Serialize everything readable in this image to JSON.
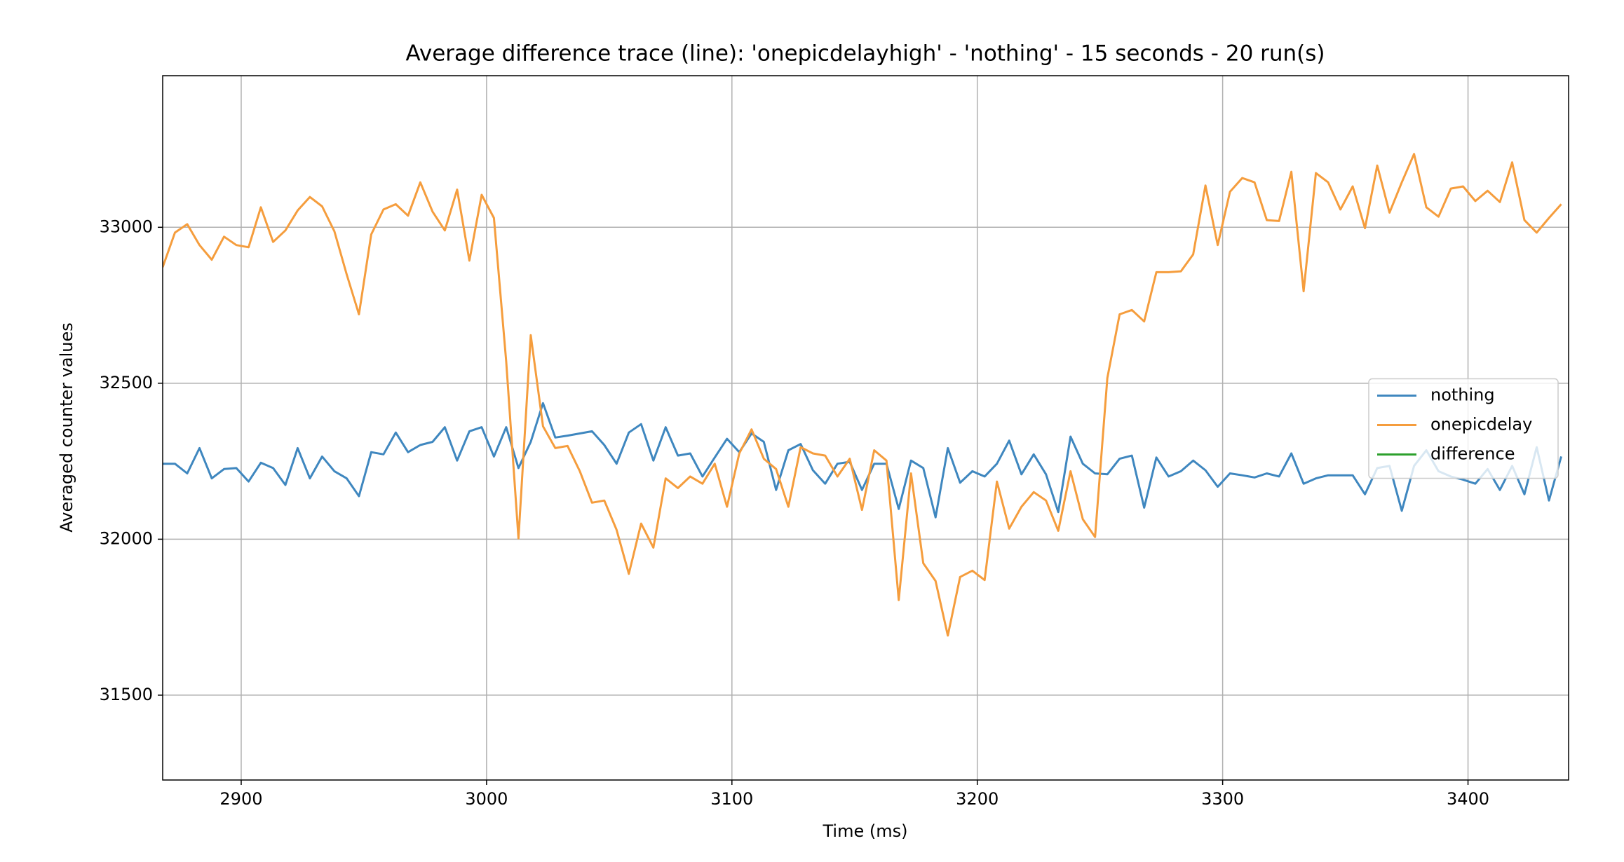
{
  "chart_data": {
    "type": "line",
    "title": "Average difference trace (line): 'onepicdelayhigh' - 'nothing' - 15 seconds - 20 run(s)",
    "x_label": "Time (ms)",
    "y_label": "Averaged counter values",
    "x": [
      2868,
      2873,
      2878,
      2883,
      2888,
      2893,
      2898,
      2903,
      2908,
      2913,
      2918,
      2923,
      2928,
      2933,
      2938,
      2943,
      2948,
      2953,
      2958,
      2963,
      2968,
      2973,
      2978,
      2983,
      2988,
      2993,
      2998,
      3003,
      3008,
      3013,
      3018,
      3023,
      3028,
      3033,
      3038,
      3043,
      3048,
      3053,
      3058,
      3063,
      3068,
      3073,
      3078,
      3083,
      3088,
      3093,
      3098,
      3103,
      3108,
      3113,
      3118,
      3123,
      3128,
      3133,
      3138,
      3143,
      3148,
      3153,
      3158,
      3163,
      3168,
      3173,
      3178,
      3183,
      3188,
      3193,
      3198,
      3203,
      3208,
      3213,
      3218,
      3223,
      3228,
      3233,
      3238,
      3243,
      3248,
      3253,
      3258,
      3263,
      3268,
      3273,
      3278,
      3283,
      3288,
      3293,
      3298,
      3303,
      3308,
      3313,
      3318,
      3323,
      3328,
      3333,
      3338,
      3343,
      3348,
      3353,
      3358,
      3363,
      3368,
      3373,
      3378,
      3383,
      3388,
      3393,
      3398,
      3403,
      3408,
      3413,
      3418,
      3423,
      3428,
      3433,
      3438
    ],
    "series": [
      {
        "name": "nothing",
        "color": "#3f87bf",
        "values": [
          32242,
          32242,
          32211,
          32292,
          32195,
          32225,
          32228,
          32185,
          32245,
          32228,
          32174,
          32292,
          32195,
          32265,
          32218,
          32195,
          32138,
          32279,
          32272,
          32342,
          32279,
          32302,
          32312,
          32359,
          32252,
          32346,
          32359,
          32265,
          32359,
          32228,
          32312,
          32436,
          32326,
          32332,
          32339,
          32346,
          32302,
          32242,
          32342,
          32369,
          32252,
          32359,
          32268,
          32275,
          32201,
          32262,
          32322,
          32279,
          32339,
          32312,
          32158,
          32285,
          32305,
          32221,
          32178,
          32242,
          32248,
          32158,
          32242,
          32242,
          32097,
          32252,
          32228,
          32070,
          32292,
          32181,
          32218,
          32201,
          32242,
          32316,
          32208,
          32272,
          32208,
          32087,
          32329,
          32242,
          32211,
          32208,
          32258,
          32268,
          32101,
          32262,
          32201,
          32218,
          32252,
          32221,
          32168,
          32211,
          32205,
          32198,
          32211,
          32201,
          32275,
          32178,
          32195,
          32205,
          32205,
          32205,
          32144,
          32228,
          32235,
          32091,
          32235,
          32285,
          32218,
          32201,
          32191,
          32178,
          32225,
          32158,
          32235,
          32144,
          32295,
          32124,
          32265
        ]
      },
      {
        "name": "onepicdelay",
        "color": "#f59d3d",
        "values": [
          32872,
          32983,
          33010,
          32943,
          32896,
          32970,
          32943,
          32936,
          33064,
          32953,
          32990,
          33054,
          33097,
          33067,
          32987,
          32849,
          32721,
          32977,
          33057,
          33074,
          33037,
          33144,
          33050,
          32990,
          33121,
          32893,
          33104,
          33030,
          32570,
          32003,
          32654,
          32362,
          32292,
          32299,
          32218,
          32117,
          32124,
          32030,
          31889,
          32050,
          31973,
          32195,
          32164,
          32201,
          32178,
          32242,
          32104,
          32275,
          32352,
          32258,
          32225,
          32104,
          32295,
          32275,
          32268,
          32201,
          32258,
          32094,
          32285,
          32252,
          31805,
          32211,
          31923,
          31866,
          31691,
          31879,
          31899,
          31869,
          32185,
          32034,
          32104,
          32151,
          32124,
          32027,
          32218,
          32064,
          32007,
          32517,
          32721,
          32735,
          32698,
          32856,
          32856,
          32859,
          32913,
          33134,
          32943,
          33114,
          33158,
          33144,
          33023,
          33020,
          33178,
          32795,
          33174,
          33144,
          33057,
          33131,
          32997,
          33198,
          33047,
          33144,
          33235,
          33064,
          33034,
          33124,
          33131,
          33084,
          33117,
          33081,
          33208,
          33023,
          32983,
          33030,
          33074
        ]
      },
      {
        "name": "difference",
        "color": "#2ca02c",
        "values": [
          null,
          null,
          null,
          null,
          null,
          null,
          null,
          null,
          null,
          null,
          null,
          null,
          null,
          null,
          null,
          null,
          null,
          null,
          null,
          null,
          null,
          null,
          null,
          null,
          null,
          null,
          null,
          null,
          null,
          null,
          null,
          null,
          null,
          null,
          null,
          null,
          null,
          null,
          null,
          null,
          null,
          null,
          null,
          null,
          null,
          null,
          null,
          null,
          null,
          null,
          null,
          null,
          null,
          null,
          null,
          null,
          null,
          null,
          null,
          null,
          null,
          null,
          null,
          null,
          null,
          null,
          null,
          null,
          null,
          null,
          null,
          null,
          null,
          null,
          null,
          null,
          null,
          null,
          null,
          null,
          null,
          null,
          null,
          null,
          null,
          null,
          null,
          null,
          null,
          null,
          null,
          null,
          null,
          null,
          null,
          null,
          null,
          null,
          null,
          null,
          null,
          null,
          null,
          null,
          null,
          null,
          null,
          null,
          null,
          null,
          null,
          null,
          null,
          null,
          null
        ]
      }
    ],
    "xlim": [
      2868,
      3441
    ],
    "ylim": [
      31228,
      33486
    ],
    "xticks": [
      2900,
      3000,
      3100,
      3200,
      3300,
      3400
    ],
    "yticks": [
      31500,
      32000,
      32500,
      33000
    ],
    "grid": true,
    "legend": "center right"
  }
}
